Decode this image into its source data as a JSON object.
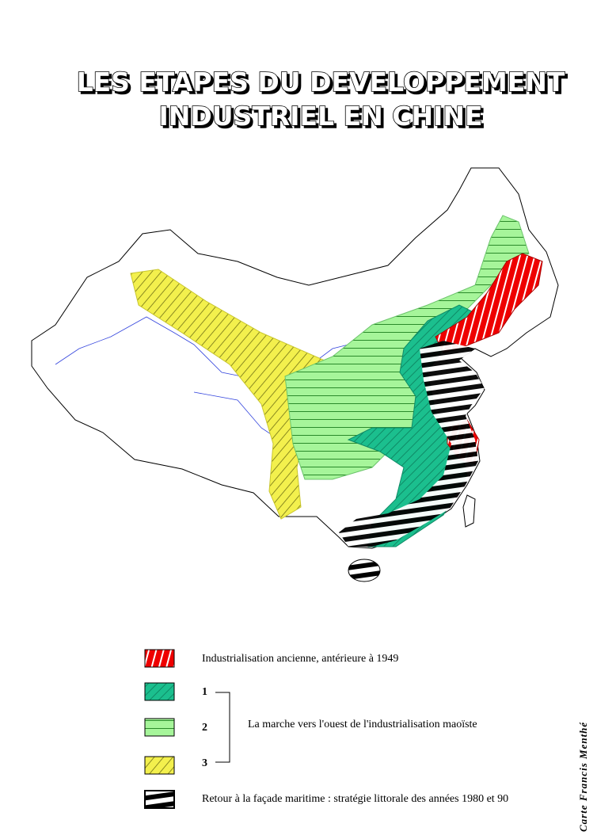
{
  "title": [
    "LES ETAPES DU DEVELOPPEMENT",
    "INDUSTRIEL EN CHINE"
  ],
  "legend": {
    "items": [
      {
        "label": "Industrialisation ancienne, antérieure à 1949"
      },
      {
        "label": "1"
      },
      {
        "label": "2"
      },
      {
        "label": "3"
      }
    ],
    "group_label": "La marche vers l'ouest de l'industrialisation  maoïste",
    "coastal": "Retour à la façade maritime : stratégie littorale des années 1980 et 90"
  },
  "credit": "Carte Francis Menthé"
}
